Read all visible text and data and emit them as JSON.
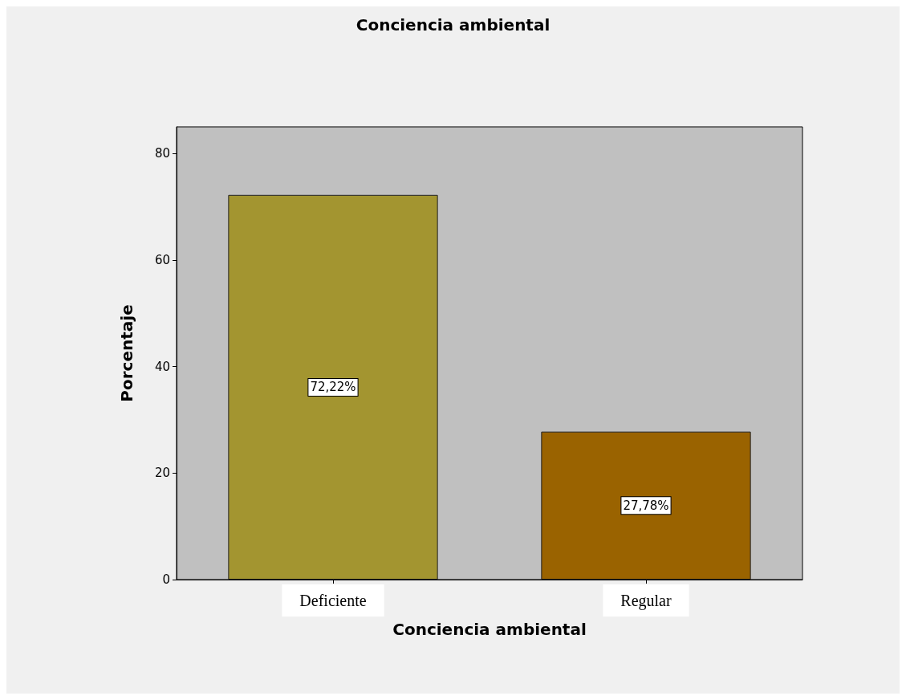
{
  "chart_data": {
    "type": "bar",
    "title": "Conciencia ambiental",
    "xlabel": "Conciencia ambiental",
    "ylabel": "Porcentaje",
    "categories": [
      "Deficiente",
      "Regular"
    ],
    "values": [
      72.22,
      27.78
    ],
    "colors": [
      "#a39530",
      "#9a6300"
    ],
    "value_labels": [
      "72,22%",
      "27,78%"
    ],
    "ylim": [
      0,
      85
    ],
    "yticks": [
      0,
      20,
      40,
      60,
      80
    ],
    "grid": false
  }
}
